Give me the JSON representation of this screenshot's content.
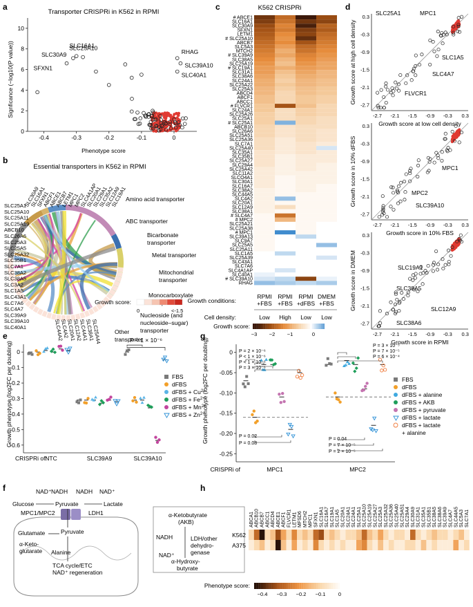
{
  "panels": {
    "a": "a",
    "b": "b",
    "c": "c",
    "d": "d",
    "e": "e",
    "f": "f",
    "g": "g",
    "h": "h"
  },
  "colors": {
    "red": "#e03a32",
    "fbs": "#7a7a7a",
    "dfbs": "#f2a02a",
    "cu": "#5ab4e6",
    "fe": "#1e9e5a",
    "mn": "#c2459e",
    "zn": "#2b8fd6",
    "alanine": "#3fa9e0",
    "akb": "#1e9e5a",
    "pyruvate": "#c474b0",
    "lactate": "#2b8fd6",
    "lactala": "#f07a3a"
  },
  "panel_a": {
    "chart_data": {
      "type": "scatter",
      "title": "Transporter CRISPRi in K562 in RPMI",
      "xlabel": "Phenotype score",
      "ylabel": "Signficance (−log10(P value))",
      "xlim": [
        -0.45,
        0.07
      ],
      "ylim": [
        0,
        11
      ],
      "xticks": [
        "-0.4",
        "-0.3",
        "-0.2",
        "-0.1",
        "0"
      ],
      "yticks": [
        "0",
        "2",
        "4",
        "6",
        "8",
        "10"
      ],
      "labeled_points": [
        {
          "name": "SLC16A1",
          "x": -0.3,
          "y": 7.3
        },
        {
          "name": "SLC30A9",
          "x": -0.31,
          "y": 7.1
        },
        {
          "name": "SLC25A10",
          "x": -0.28,
          "y": 7.2
        },
        {
          "name": "SFXN1",
          "x": -0.33,
          "y": 6.6
        },
        {
          "name": "RHAG",
          "x": 0.01,
          "y": 7.1
        },
        {
          "name": "SLC39A10",
          "x": 0.02,
          "y": 6.6
        },
        {
          "name": "SLC40A1",
          "x": 0.01,
          "y": 5.8
        }
      ]
    }
  },
  "panel_b": {
    "title": "Essential transporters in K562 in RPMI",
    "categories": [
      {
        "name": "Amino acid transporter",
        "color": "#8c8c8c"
      },
      {
        "name": "ABC transporter",
        "color": "#c79b4a"
      },
      {
        "name": "Bicarbonate transporter",
        "color": "#d7b46a"
      },
      {
        "name": "Metal transporter",
        "color": "#5b8fc7"
      },
      {
        "name": "Mitochondrial transporter",
        "color": "#c28bb7"
      },
      {
        "name": "Monocarboxylate transporter",
        "color": "#3a6fb0"
      },
      {
        "name": "Nucleoside (and nucleoside-sugar) transporter",
        "color": "#d9d06a"
      },
      {
        "name": "Other transporter",
        "color": "#c7c7a0"
      }
    ],
    "category_labels": [
      "Amino acid transporter",
      "ABC transporter",
      "Bicarbonate",
      "transporter",
      "Metal transporter",
      "Mitochondrial",
      "transporter",
      "Monocarboxylate",
      "transporter",
      "Nucleoside (and",
      "nucleoside–sugar)",
      "transporter",
      "Other",
      "transporter"
    ],
    "genes": [
      "SLC25A1",
      "SLC25A10",
      "SLC25A11",
      "SLC30A9",
      "SFXN1",
      "SLC16A1",
      "SLC1A5",
      "SLC7A1",
      "SLC38A2",
      "SLC38A5",
      "SLC3A2",
      "ABCE1",
      "ABCF1",
      "ABCB7",
      "SLC4A7",
      "SLC39A9",
      "SLC39A10",
      "SLC40A1",
      "SLC25A3",
      "SLC25A5",
      "SLC25A19",
      "SLC25A26",
      "SLC25A32",
      "SLC35B1",
      "SLC29A1",
      "SLC35A2",
      "SLC20A1",
      "SLC4A1AP",
      "MPC1",
      "MPC2",
      "SLC7A6",
      "SLC12A9",
      "SLC19A1",
      "SLC43A1",
      "ABCC1"
    ],
    "left_gene_labels": [
      "SLC25A1",
      "SLC25A10",
      "SLC25A11",
      "SLC25A19",
      "ABCB10",
      "SLC26A6",
      "SLC25A3",
      "SLC25A5",
      "SLC25A32",
      "SLC35B1",
      "SLC7A1",
      "SLC38A2",
      "SLC38A5",
      "SLC3A2",
      "SLC1A5",
      "SLC43A1",
      "SLC7A6",
      "SLC4A7",
      "SLC39A9",
      "SLC39A10",
      "SLC40A1"
    ],
    "top_gene_labels": [
      "SLC30A9",
      "SLC16A1",
      "SFXN1",
      "ABCF1",
      "ABCE1",
      "ABCB7",
      "LETM1",
      "MPC1",
      "MPC2",
      "SLC4A1AP",
      "SLC20A1",
      "SLC29A1",
      "SLC35A2",
      "SLC12A9",
      "SLC19A1"
    ],
    "bottom_gene_labels": [
      "SLC44A2",
      "SLC4A2",
      "SLC20A1",
      "SLC12A2",
      "SLC44A1",
      "SLC38A1",
      "SLC25A44"
    ],
    "legend_title": "Growth score:",
    "legend_min": "0",
    "legend_max": "<-1.5"
  },
  "panel_c": {
    "chart_data": {
      "type": "heatmap",
      "title": "K562 CRISPRi",
      "rows": [
        "# ABCE1",
        "SLC16A1",
        "SLC30A9",
        "SFXN1",
        "LETM1",
        "# SLC25A10",
        "ABCB7",
        "SLC5A3",
        "MTCH2",
        "# SLC39A9",
        "SLC38A5",
        "SLC25A19",
        "# SLC19A1",
        "SLC31A1",
        "SLC38A6",
        "SLC24A1",
        "SLC25A22",
        "SLC25A3",
        "ABCD4",
        "ABCF1",
        "ABCC1",
        "# FLVCR1",
        "SLC24A1",
        "SLC25A26",
        "SLC25A1",
        "# SLC25A1",
        "ABCB10",
        "SLC26A6",
        "SLC25A51",
        "SLC25A36",
        "SLC7A1",
        "SLC25A40",
        "SLC35A1",
        "SLC35B1",
        "SLC25A27",
        "SLC29A4",
        "SLC25A42",
        "SLC11A2",
        "SLCO4A1",
        "SLC30A1",
        "SLC16A7",
        "SLC38A2",
        "SLC44A5",
        "SLC4A2",
        "SLC20A1",
        "SLC12A9",
        "SLC38A1",
        "# SLC4A7",
        "# MPC2",
        "SLC25A21",
        "SLC25A38",
        "# MPC1",
        "SLC39A13",
        "SLC9A7",
        "SLC25A5",
        "SLC25A11",
        "SLC1A5",
        "SLC25A39",
        "SLC43A1",
        "SLC7A6",
        "SLC4A1AP",
        "SLC40A1",
        "# SLC39A10",
        "RHAG"
      ],
      "columns": [
        {
          "medium": "RPMI +FBS",
          "density": "Low"
        },
        {
          "medium": "RPMI +FBS",
          "density": "High"
        },
        {
          "medium": "RPMI +dFBS",
          "density": "Low"
        },
        {
          "medium": "DMEM +FBS",
          "density": "Low"
        }
      ],
      "row_label_conditions": "Growth conditions:",
      "row_label_density": "Cell density:",
      "colorbar_label": "Growth score:",
      "colorbar_ticks": [
        "−3",
        "−2",
        "−1",
        "0"
      ],
      "values": [
        [
          -2.6,
          -1.9,
          -3.0,
          -2.3
        ],
        [
          -2.5,
          -1.8,
          -2.6,
          -2.4
        ],
        [
          -2.3,
          -1.6,
          -2.9,
          -2.0
        ],
        [
          -2.2,
          -1.7,
          -2.5,
          -2.1
        ],
        [
          -2.1,
          -1.5,
          -2.4,
          -1.9
        ],
        [
          -2.0,
          -1.4,
          -2.7,
          -1.8
        ],
        [
          -1.9,
          -1.5,
          -2.2,
          -1.7
        ],
        [
          -1.8,
          -1.3,
          -1.9,
          -1.6
        ],
        [
          -1.7,
          -1.1,
          -1.8,
          -1.5
        ],
        [
          -1.6,
          -1.2,
          -1.6,
          -1.4
        ],
        [
          -1.5,
          -1.0,
          -1.5,
          -1.3
        ],
        [
          -1.4,
          -0.9,
          -1.4,
          -1.2
        ],
        [
          -1.3,
          -1.1,
          -1.3,
          -1.2
        ],
        [
          -1.3,
          -0.9,
          -1.2,
          -1.0
        ],
        [
          -1.2,
          -0.8,
          -1.1,
          -1.0
        ],
        [
          -1.1,
          -0.7,
          -1.0,
          -0.9
        ],
        [
          -1.1,
          -0.8,
          -1.0,
          -0.9
        ],
        [
          -1.0,
          -0.7,
          -0.9,
          -0.8
        ],
        [
          -1.0,
          -0.6,
          -0.9,
          -0.8
        ],
        [
          -0.9,
          -0.6,
          -0.8,
          -0.7
        ],
        [
          -0.9,
          -0.6,
          -0.8,
          -0.7
        ],
        [
          -0.8,
          -2.2,
          -0.9,
          -0.6
        ],
        [
          -0.8,
          -0.5,
          -0.7,
          -0.6
        ],
        [
          -0.7,
          -0.5,
          -0.7,
          -0.6
        ],
        [
          -0.7,
          -0.5,
          -0.6,
          -0.5
        ],
        [
          -0.7,
          0.6,
          -0.6,
          -0.5
        ],
        [
          -0.6,
          -0.4,
          -0.5,
          -0.5
        ],
        [
          -0.6,
          -0.4,
          -0.5,
          -0.4
        ],
        [
          -0.6,
          -0.4,
          -0.5,
          -0.4
        ],
        [
          -0.5,
          -0.3,
          -0.5,
          -0.4
        ],
        [
          -0.5,
          -0.3,
          -0.4,
          -0.3
        ],
        [
          -0.5,
          -0.3,
          -0.4,
          0.2
        ],
        [
          -0.4,
          -0.3,
          -0.4,
          -0.3
        ],
        [
          -0.4,
          -0.2,
          -0.3,
          -0.3
        ],
        [
          -0.4,
          -0.2,
          -0.3,
          -0.3
        ],
        [
          -0.4,
          -0.2,
          -0.3,
          -0.2
        ],
        [
          -0.3,
          -0.2,
          -0.3,
          -0.2
        ],
        [
          -0.3,
          -0.2,
          -0.2,
          -0.2
        ],
        [
          -0.3,
          -0.1,
          -0.2,
          -0.2
        ],
        [
          -0.3,
          -0.1,
          -0.2,
          -0.2
        ],
        [
          -0.3,
          -0.1,
          -0.2,
          -0.1
        ],
        [
          -0.2,
          -0.1,
          -0.2,
          -0.1
        ],
        [
          -0.2,
          -0.1,
          -0.1,
          -0.1
        ],
        [
          -0.2,
          0.5,
          -0.1,
          -0.1
        ],
        [
          -0.2,
          -0.1,
          -0.1,
          -0.1
        ],
        [
          -0.2,
          -0.5,
          -0.1,
          -0.1
        ],
        [
          -0.2,
          -0.1,
          -0.1,
          -0.1
        ],
        [
          -0.1,
          -1.8,
          -0.1,
          -0.1
        ],
        [
          -0.1,
          -1.0,
          -0.1,
          -0.1
        ],
        [
          -0.1,
          0.0,
          -0.1,
          0.0
        ],
        [
          -0.1,
          0.0,
          -0.1,
          0.0
        ],
        [
          -0.1,
          0.9,
          -0.1,
          0.0
        ],
        [
          -0.1,
          0.0,
          0.3,
          0.0
        ],
        [
          -0.1,
          0.0,
          0.0,
          0.0
        ],
        [
          -0.1,
          0.0,
          0.0,
          0.5
        ],
        [
          -0.1,
          0.0,
          0.0,
          0.0
        ],
        [
          0.0,
          0.3,
          0.0,
          0.0
        ],
        [
          0.0,
          0.0,
          0.0,
          0.2
        ],
        [
          0.0,
          0.0,
          0.0,
          0.0
        ],
        [
          0.0,
          0.0,
          0.0,
          0.0
        ],
        [
          0.0,
          0.2,
          0.0,
          0.0
        ],
        [
          0.1,
          0.0,
          0.0,
          0.0
        ],
        [
          0.2,
          0.3,
          -2.4,
          0.1
        ],
        [
          0.5,
          0.4,
          0.3,
          0.4
        ]
      ]
    }
  },
  "panel_d": {
    "chart_data": [
      {
        "type": "scatter",
        "xlabel": "Growth score at low cell density",
        "ylabel": "Growth score at high cell density",
        "xticks": [
          "-2.7",
          "-2.1",
          "-1.5",
          "-0.9",
          "-0.3",
          "0.3"
        ],
        "yticks": [
          "0.3",
          "-0.3",
          "-0.9",
          "-1.5",
          "-2.1",
          "-2.7"
        ],
        "xlim": [
          -2.9,
          0.4
        ],
        "ylim": [
          -2.9,
          0.4
        ],
        "labels": [
          "SLC25A1",
          "MPC1",
          "SLC1A5",
          "SLC4A7",
          "FLVCR1"
        ]
      },
      {
        "type": "scatter",
        "xlabel": "Growth score in 10% FBS",
        "ylabel": "Growth score in 10% dFBS",
        "xticks": [
          "-2.7",
          "-2.1",
          "-1.5",
          "-0.9",
          "-0.3",
          "0.3"
        ],
        "yticks": [
          "0.3",
          "-0.3",
          "-0.9",
          "-1.5",
          "-2.1",
          "-2.7"
        ],
        "xlim": [
          -2.9,
          0.4
        ],
        "ylim": [
          -2.9,
          0.4
        ],
        "labels": [
          "MPC1",
          "MPC2",
          "SLC39A10"
        ]
      },
      {
        "type": "scatter",
        "xlabel": "Growth score in RPMI",
        "ylabel": "Growth score in DMEM",
        "xticks": [
          "-2.7",
          "-2.1",
          "-1.5",
          "-0.9",
          "-0.3",
          "0.3"
        ],
        "yticks": [
          "0.3",
          "-0.3",
          "-0.9",
          "-1.5",
          "-2.1",
          "-2.7"
        ],
        "xlim": [
          -2.9,
          0.4
        ],
        "ylim": [
          -2.9,
          0.4
        ],
        "labels": [
          "SLC19A1",
          "SLC38A5",
          "SLC12A9",
          "SLC38A6"
        ]
      }
    ]
  },
  "panel_e": {
    "chart_data": {
      "type": "scatter",
      "ylabel": "Growth phenotype (log2FC per doubling)",
      "xlabel_prefix": "CRISPRi of:",
      "groups": [
        "NTC",
        "SLC39A9",
        "SLC39A10"
      ],
      "conditions": [
        "FBS",
        "dFBS",
        "dFBS + Cu2+",
        "dFBS + Fe2+",
        "dFBS + Mn2+",
        "dFBS + Zn2+"
      ],
      "legend": [
        {
          "label": "FBS",
          "sup": ""
        },
        {
          "label": "dFBS",
          "sup": ""
        },
        {
          "label": "dFBS + Cu",
          "sup": "2+"
        },
        {
          "label": "dFBS + Fe",
          "sup": "2+"
        },
        {
          "label": "dFBS + Mn",
          "sup": "2+"
        },
        {
          "label": "dFBS + Zn",
          "sup": "2+"
        }
      ],
      "yticks": [
        "0",
        "-0.1",
        "-0.2",
        "-0.3",
        "-0.4",
        "-0.5",
        "-0.6"
      ],
      "ylim": [
        -0.65,
        0.05
      ],
      "pvalue": "P < 1 × 10⁻⁶",
      "means": [
        [
          0.0,
          0.0,
          0.01,
          0.0,
          0.02,
          0.01
        ],
        [
          -0.31,
          -0.31,
          -0.31,
          -0.33,
          -0.31,
          -0.32
        ],
        [
          0.0,
          -0.31,
          -0.31,
          -0.36,
          -0.57,
          -0.05
        ]
      ]
    }
  },
  "panel_f": {
    "nad_plus_1": "NAD⁺",
    "nadh_1": "NADH",
    "nadh_2": "NADH",
    "nad_plus_2": "NAD⁺",
    "glucose": "Glucose",
    "pyruvate_top": "Pyruvate",
    "lactate": "Lactate",
    "mpc": "MPC1/MPC2",
    "ldh1": "LDH1",
    "glutamate": "Glutamate",
    "pyruvate_mito": "Pyruvate",
    "akg_1": "α-Keto-",
    "akg_2": "glutarate",
    "alanine": "Alanine",
    "tca_1": "TCA cycle/ETC",
    "tca_2": "NAD⁺ regeneration",
    "akb_1": "α-Ketobutyrate",
    "akb_2": "(AKB)",
    "nadh_box": "NADH",
    "nad_box": "NAD⁺",
    "ldh_other_1": "LDH/other",
    "ldh_other_2": "dehydro-",
    "ldh_other_3": "genase",
    "hb_1": "α-Hydroxy-",
    "hb_2": "butyrate"
  },
  "panel_g": {
    "chart_data": {
      "type": "scatter",
      "ylabel": "Growth phenotype (log2FC per doubling)",
      "xlabel_prefix": "CRISPRi of",
      "groups": [
        "MPC1",
        "MPC2"
      ],
      "conditions": [
        "FBS",
        "dFBS",
        "dFBS + alanine",
        "dFBS + AKB",
        "dFBS + pyruvate",
        "dFBS + lactate",
        "dFBS + lactate + alanine"
      ],
      "legend": [
        "FBS",
        "dFBS",
        "dFBS + alanine",
        "dFBS + AKB",
        "dFBS + pyruvate",
        "dFBS + lactate",
        "dFBS + lactate",
        "+ alanine"
      ],
      "yticks": [
        "0",
        "-0.05",
        "-0.10",
        "-0.15",
        "-0.20",
        "-0.25"
      ],
      "ylim": [
        -0.27,
        0.02
      ],
      "pvalues_mpc1_top": [
        "P = 2 × 10⁻⁶",
        "P < 1 × 10⁻⁶",
        "P < 1 × 10⁻⁶",
        "P = 3 × 10⁻⁶"
      ],
      "pvalues_mpc1_bottom": [
        "P = 0.02",
        "P = 0.08"
      ],
      "pvalues_mpc2_top": [
        "P = 3 × 10⁻⁵",
        "P = 7 × 10⁻⁵",
        "P = 6 × 10⁻⁴"
      ],
      "pvalues_mpc2_bottom": [
        "P = 0.04",
        "P = 7 × 10⁻⁵",
        "P = 2 × 10⁻⁵"
      ],
      "means": [
        [
          -0.07,
          -0.16,
          -0.03,
          -0.03,
          -0.11,
          -0.19,
          -0.05
        ],
        [
          -0.03,
          -0.11,
          -0.02,
          -0.03,
          -0.09,
          -0.18,
          -0.03
        ]
      ]
    }
  },
  "panel_h": {
    "chart_data": {
      "type": "heatmap",
      "columns": [
        "ABCA1",
        "ABCB10",
        "ABCB7",
        "ABCC1",
        "ABCD4",
        "ABCE1",
        "ABCF1",
        "FLVCR1",
        "LETM1",
        "MFSD6",
        "MTCH2",
        "MPC1",
        "SFXN1",
        "SLC16A1",
        "SLC16A7",
        "SLC19A1",
        "SLC1A5",
        "SLC20A1",
        "SLC24A1",
        "SLC24A1",
        "SLC25A1",
        "SLC25A10",
        "SLC25A19",
        "SLC25A27",
        "SLC25A3",
        "SLC25A32",
        "SLC25A36",
        "SLC25A40",
        "SLC25A51",
        "SLC29A4",
        "SLC30A9",
        "SLC31A1",
        "SLC35A1",
        "SLC35B1",
        "SLC38A5",
        "SLC38A6",
        "SLC39A9",
        "SLC4A7",
        "SLC44A5",
        "SLC5A3",
        "SLC7A1"
      ],
      "rows": [
        "K562",
        "A375"
      ],
      "colorbar_label": "Phenotype score:",
      "colorbar_ticks": [
        "−0.4",
        "−0.3",
        "−0.2",
        "−0.1",
        "0"
      ],
      "values": [
        [
          -0.1,
          -0.3,
          -0.45,
          -0.1,
          -0.15,
          -0.35,
          -0.2,
          -0.1,
          -0.25,
          -0.1,
          -0.15,
          -0.1,
          -0.3,
          -0.35,
          -0.1,
          -0.15,
          -0.1,
          -0.05,
          -0.1,
          -0.1,
          -0.15,
          -0.3,
          -0.15,
          -0.1,
          -0.2,
          -0.1,
          -0.05,
          -0.1,
          -0.1,
          -0.05,
          -0.3,
          -0.1,
          -0.05,
          -0.1,
          -0.15,
          -0.1,
          -0.1,
          -0.05,
          -0.1,
          -0.15,
          -0.05
        ],
        [
          -0.05,
          -0.1,
          -0.15,
          -0.05,
          -0.1,
          -0.45,
          -0.15,
          -0.05,
          -0.2,
          -0.05,
          -0.1,
          -0.05,
          -0.25,
          -0.1,
          -0.05,
          -0.1,
          -0.05,
          -0.1,
          -0.05,
          -0.05,
          -0.2,
          -0.25,
          -0.1,
          -0.05,
          -0.15,
          -0.05,
          -0.1,
          -0.05,
          -0.05,
          -0.1,
          -0.1,
          -0.05,
          -0.15,
          -0.05,
          -0.1,
          -0.05,
          -0.05,
          -0.05,
          -0.2,
          -0.05,
          -0.1
        ]
      ]
    }
  }
}
